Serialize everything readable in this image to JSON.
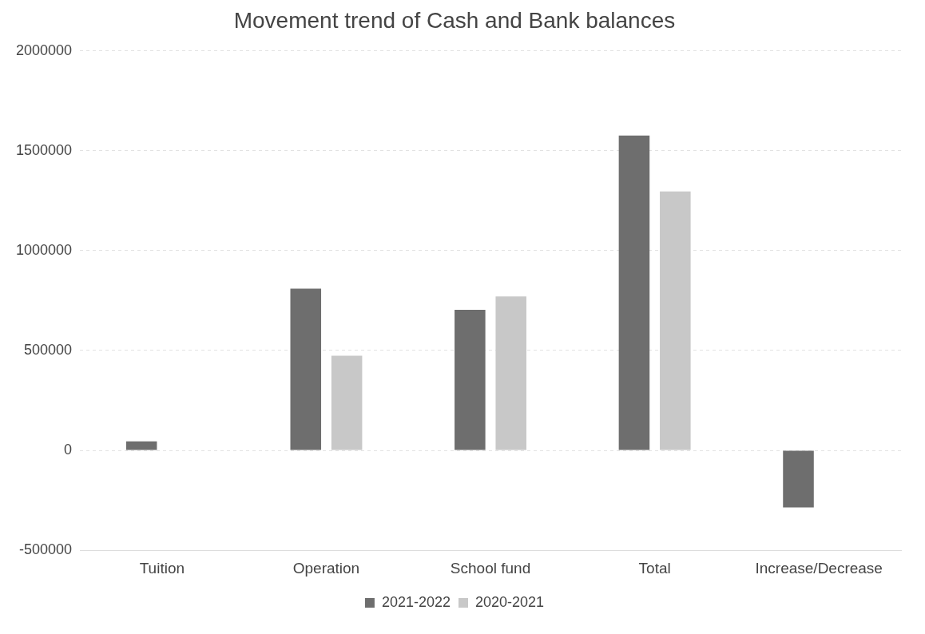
{
  "chart_data": {
    "type": "bar",
    "title": "Movement trend of Cash and Bank balances",
    "categories": [
      "Tuition",
      "Operation",
      "School fund",
      "Total",
      "Increase/Decrease"
    ],
    "series": [
      {
        "name": "2021-2022",
        "color": "#6e6e6e",
        "values": [
          45000,
          810000,
          704000,
          1576000,
          -285000
        ]
      },
      {
        "name": "2020-2021",
        "color": "#c8c8c8",
        "values": [
          null,
          474000,
          771000,
          1296000,
          null
        ]
      }
    ],
    "ylim": [
      -500000,
      2000000
    ],
    "yticks": [
      -500000,
      0,
      500000,
      1000000,
      1500000,
      2000000
    ],
    "grid": "y",
    "legend": "bottom"
  }
}
